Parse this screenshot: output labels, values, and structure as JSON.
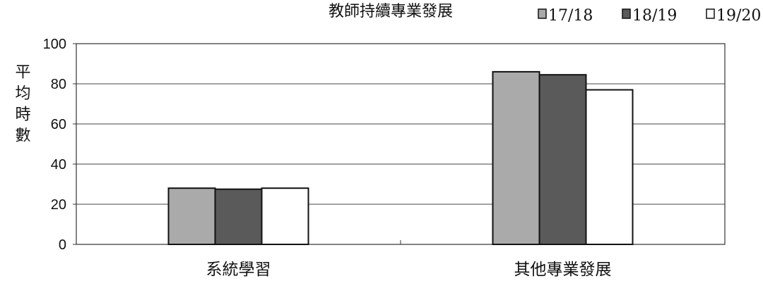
{
  "chart_data": {
    "type": "bar",
    "title": "教師持續專業發展",
    "xlabel": "",
    "ylabel": "平均時數",
    "categories": [
      "系統學習",
      "其他專業發展"
    ],
    "series": [
      {
        "name": "17/18",
        "values": [
          28,
          86
        ],
        "color": "#aaaaaa"
      },
      {
        "name": "18/19",
        "values": [
          27.5,
          84.5
        ],
        "color": "#5a5a5a"
      },
      {
        "name": "19/20",
        "values": [
          28,
          77
        ],
        "color": "#ffffff"
      }
    ],
    "ylim": [
      0,
      100
    ],
    "yticks": [
      0,
      20,
      40,
      60,
      80,
      100
    ],
    "grid": true,
    "legend_position": "top-right",
    "colors": {
      "frame": "#333333",
      "grid": "#444444",
      "text": "#111111"
    }
  }
}
